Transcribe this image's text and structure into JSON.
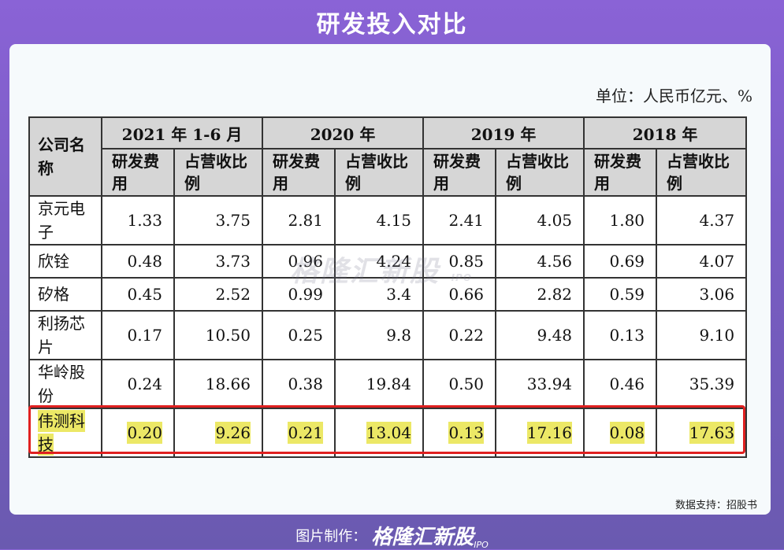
{
  "page_title": "研发投入对比",
  "unit_text": "单位：人民币亿元、%",
  "table": {
    "company_header": "公司名称",
    "years": [
      "2021 年 1-6 月",
      "2020 年",
      "2019 年",
      "2018 年"
    ],
    "sub_headers": [
      "研发费用",
      "占营收比例"
    ],
    "rows": [
      {
        "name": "京元电子",
        "values": [
          "1.33",
          "3.75",
          "2.81",
          "4.15",
          "2.41",
          "4.05",
          "1.80",
          "4.37"
        ]
      },
      {
        "name": "欣铨",
        "values": [
          "0.48",
          "3.73",
          "0.96",
          "4.24",
          "0.85",
          "4.56",
          "0.69",
          "4.07"
        ]
      },
      {
        "name": "矽格",
        "values": [
          "0.45",
          "2.52",
          "0.99",
          "3.4",
          "0.66",
          "2.82",
          "0.59",
          "3.06"
        ]
      },
      {
        "name": "利扬芯片",
        "values": [
          "0.17",
          "10.50",
          "0.25",
          "9.8",
          "0.22",
          "9.48",
          "0.13",
          "9.10"
        ]
      },
      {
        "name": "华岭股份",
        "values": [
          "0.24",
          "18.66",
          "0.38",
          "19.84",
          "0.50",
          "33.94",
          "0.46",
          "35.39"
        ]
      },
      {
        "name": "伟测科技",
        "values": [
          "0.20",
          "9.26",
          "0.21",
          "13.04",
          "0.13",
          "17.16",
          "0.08",
          "17.63"
        ]
      }
    ]
  },
  "watermark": {
    "text": "格隆汇新股",
    "sub": "IPO"
  },
  "source_text": "数据支持：招股书",
  "footer": {
    "made_by": "图片制作：",
    "brand": "格隆汇新股",
    "brand_sub": "IPO"
  },
  "colors": {
    "highlight": "#ece866",
    "highlight_border": "#e02020",
    "header_bg": "#d6d6d6"
  }
}
